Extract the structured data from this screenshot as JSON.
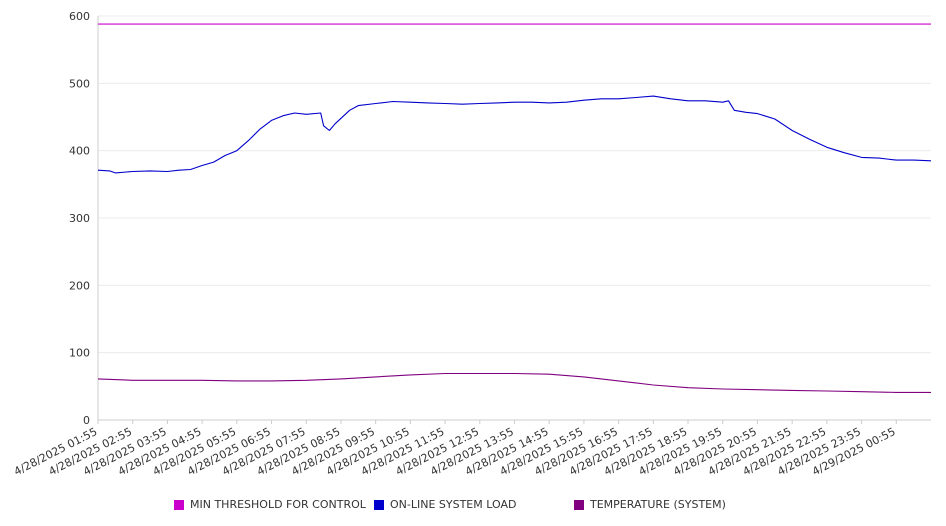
{
  "chart_data": {
    "type": "line",
    "title": "",
    "xlabel": "",
    "ylabel": "",
    "ylim": [
      0,
      600
    ],
    "yticks": [
      0,
      100,
      200,
      300,
      400,
      500,
      600
    ],
    "grid": "horizontal",
    "legend_position": "bottom",
    "x_tick_labels": [
      "4/28/2025 01:55",
      "4/28/2025 02:55",
      "4/28/2025 03:55",
      "4/28/2025 04:55",
      "4/28/2025 05:55",
      "4/28/2025 06:55",
      "4/28/2025 07:55",
      "4/28/2025 08:55",
      "4/28/2025 09:55",
      "4/28/2025 10:55",
      "4/28/2025 11:55",
      "4/28/2025 12:55",
      "4/28/2025 13:55",
      "4/28/2025 14:55",
      "4/28/2025 15:55",
      "4/28/2025 16:55",
      "4/28/2025 17:55",
      "4/28/2025 18:55",
      "4/28/2025 19:55",
      "4/28/2025 20:55",
      "4/28/2025 21:55",
      "4/28/2025 22:55",
      "4/28/2025 23:55",
      "4/29/2025 00:55"
    ],
    "x_end": "4/29/2025 01:55",
    "series": [
      {
        "name": "MIN THRESHOLD FOR CONTROL",
        "color": "#cc00cc",
        "points": [
          [
            "4/28/2025 01:55",
            588
          ],
          [
            "4/29/2025 01:55",
            588
          ]
        ]
      },
      {
        "name": "ON-LINE SYSTEM LOAD",
        "color": "#0000cc",
        "points": [
          [
            "4/28/2025 01:55",
            371
          ],
          [
            "4/28/2025 02:15",
            370
          ],
          [
            "4/28/2025 02:25",
            367
          ],
          [
            "4/28/2025 02:55",
            369
          ],
          [
            "4/28/2025 03:25",
            370
          ],
          [
            "4/28/2025 03:55",
            369
          ],
          [
            "4/28/2025 04:15",
            371
          ],
          [
            "4/28/2025 04:35",
            372
          ],
          [
            "4/28/2025 04:55",
            378
          ],
          [
            "4/28/2025 05:15",
            383
          ],
          [
            "4/28/2025 05:35",
            393
          ],
          [
            "4/28/2025 05:55",
            400
          ],
          [
            "4/28/2025 06:15",
            415
          ],
          [
            "4/28/2025 06:35",
            432
          ],
          [
            "4/28/2025 06:55",
            445
          ],
          [
            "4/28/2025 07:15",
            452
          ],
          [
            "4/28/2025 07:35",
            456
          ],
          [
            "4/28/2025 07:55",
            454
          ],
          [
            "4/28/2025 08:20",
            456
          ],
          [
            "4/28/2025 08:25",
            437
          ],
          [
            "4/28/2025 08:35",
            430
          ],
          [
            "4/28/2025 08:45",
            440
          ],
          [
            "4/28/2025 08:55",
            448
          ],
          [
            "4/28/2025 09:10",
            460
          ],
          [
            "4/28/2025 09:25",
            467
          ],
          [
            "4/28/2025 09:55",
            470
          ],
          [
            "4/28/2025 10:25",
            473
          ],
          [
            "4/28/2025 10:55",
            472
          ],
          [
            "4/28/2025 11:25",
            471
          ],
          [
            "4/28/2025 11:55",
            470
          ],
          [
            "4/28/2025 12:25",
            469
          ],
          [
            "4/28/2025 12:55",
            470
          ],
          [
            "4/28/2025 13:25",
            471
          ],
          [
            "4/28/2025 13:55",
            472
          ],
          [
            "4/28/2025 14:25",
            472
          ],
          [
            "4/28/2025 14:55",
            471
          ],
          [
            "4/28/2025 15:25",
            472
          ],
          [
            "4/28/2025 15:55",
            475
          ],
          [
            "4/28/2025 16:25",
            477
          ],
          [
            "4/28/2025 16:55",
            477
          ],
          [
            "4/28/2025 17:25",
            479
          ],
          [
            "4/28/2025 17:55",
            481
          ],
          [
            "4/28/2025 18:25",
            477
          ],
          [
            "4/28/2025 18:55",
            474
          ],
          [
            "4/28/2025 19:25",
            474
          ],
          [
            "4/28/2025 19:55",
            472
          ],
          [
            "4/28/2025 20:05",
            474
          ],
          [
            "4/28/2025 20:15",
            460
          ],
          [
            "4/28/2025 20:35",
            457
          ],
          [
            "4/28/2025 20:55",
            455
          ],
          [
            "4/28/2025 21:25",
            447
          ],
          [
            "4/28/2025 21:55",
            430
          ],
          [
            "4/28/2025 22:25",
            417
          ],
          [
            "4/28/2025 22:55",
            405
          ],
          [
            "4/28/2025 23:25",
            397
          ],
          [
            "4/28/2025 23:55",
            390
          ],
          [
            "4/29/2025 00:25",
            389
          ],
          [
            "4/29/2025 00:55",
            386
          ],
          [
            "4/29/2025 01:25",
            386
          ],
          [
            "4/29/2025 01:55",
            385
          ]
        ]
      },
      {
        "name": "TEMPERATURE (SYSTEM)",
        "color": "#800080",
        "points": [
          [
            "4/28/2025 01:55",
            61
          ],
          [
            "4/28/2025 02:55",
            59
          ],
          [
            "4/28/2025 03:55",
            59
          ],
          [
            "4/28/2025 04:55",
            59
          ],
          [
            "4/28/2025 05:55",
            58
          ],
          [
            "4/28/2025 06:55",
            58
          ],
          [
            "4/28/2025 07:55",
            59
          ],
          [
            "4/28/2025 08:55",
            61
          ],
          [
            "4/28/2025 09:55",
            64
          ],
          [
            "4/28/2025 10:55",
            67
          ],
          [
            "4/28/2025 11:55",
            69
          ],
          [
            "4/28/2025 12:55",
            69
          ],
          [
            "4/28/2025 13:55",
            69
          ],
          [
            "4/28/2025 14:55",
            68
          ],
          [
            "4/28/2025 15:55",
            64
          ],
          [
            "4/28/2025 16:55",
            58
          ],
          [
            "4/28/2025 17:55",
            52
          ],
          [
            "4/28/2025 18:55",
            48
          ],
          [
            "4/28/2025 19:55",
            46
          ],
          [
            "4/28/2025 20:55",
            45
          ],
          [
            "4/28/2025 21:55",
            44
          ],
          [
            "4/28/2025 22:55",
            43
          ],
          [
            "4/28/2025 23:55",
            42
          ],
          [
            "4/29/2025 00:55",
            41
          ],
          [
            "4/29/2025 01:55",
            41
          ]
        ]
      }
    ]
  }
}
